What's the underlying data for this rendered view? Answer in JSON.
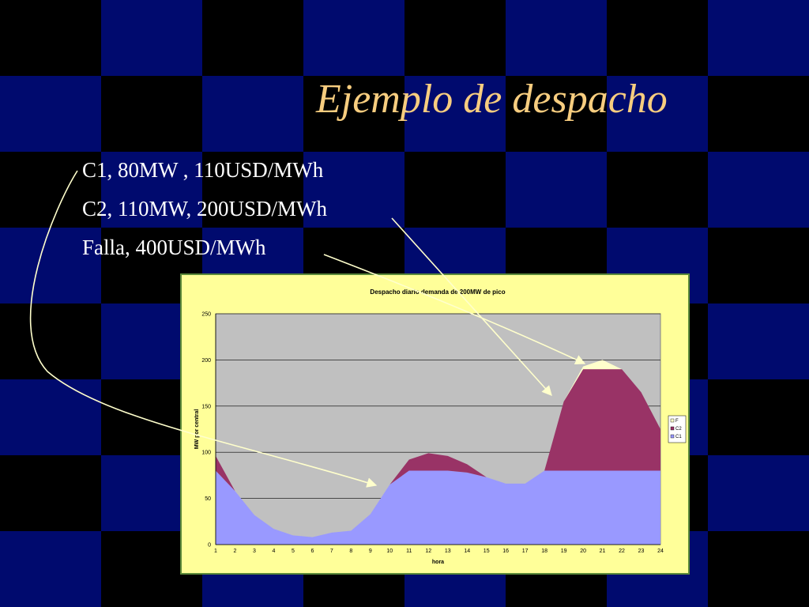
{
  "slide": {
    "title": "Ejemplo de despacho",
    "bullets": [
      "C1, 80MW , 110USD/MWh",
      "C2, 110MW, 200USD/MWh",
      "Falla, 400USD/MWh"
    ]
  },
  "colors": {
    "title": "#f7cd7f",
    "c1": "#9999ff",
    "c2": "#993366",
    "f": "#ffffcc",
    "plot_bg": "#c0c0c0",
    "chart_bg": "#ffff99",
    "arrow": "#ffffcc"
  },
  "chart_data": {
    "type": "area",
    "stacked": true,
    "title": "Despacho diario demanda de 200MW de pico",
    "xlabel": "hora",
    "ylabel": "MW por central",
    "x": [
      1,
      2,
      3,
      4,
      5,
      6,
      7,
      8,
      9,
      10,
      11,
      12,
      13,
      14,
      15,
      16,
      17,
      18,
      19,
      20,
      21,
      22,
      23,
      24
    ],
    "ylim": [
      0,
      250
    ],
    "yticks": [
      0,
      50,
      100,
      150,
      200,
      250
    ],
    "grid": true,
    "legend_position": "right",
    "series": [
      {
        "name": "C1",
        "values": [
          80,
          58,
          32,
          17,
          10,
          8,
          13,
          15,
          33,
          65,
          80,
          80,
          80,
          78,
          73,
          66,
          66,
          80,
          80,
          80,
          80,
          80,
          80,
          80
        ]
      },
      {
        "name": "C2",
        "values": [
          16,
          0,
          0,
          0,
          0,
          0,
          0,
          0,
          0,
          0,
          12,
          19,
          16,
          9,
          0,
          0,
          0,
          0,
          75,
          110,
          110,
          110,
          85,
          45
        ]
      },
      {
        "name": "F",
        "values": [
          0,
          0,
          0,
          0,
          0,
          0,
          0,
          0,
          0,
          0,
          0,
          0,
          0,
          0,
          0,
          0,
          0,
          0,
          0,
          3,
          10,
          0,
          0,
          0
        ]
      }
    ],
    "legend_order": [
      "F",
      "C2",
      "C1"
    ]
  }
}
